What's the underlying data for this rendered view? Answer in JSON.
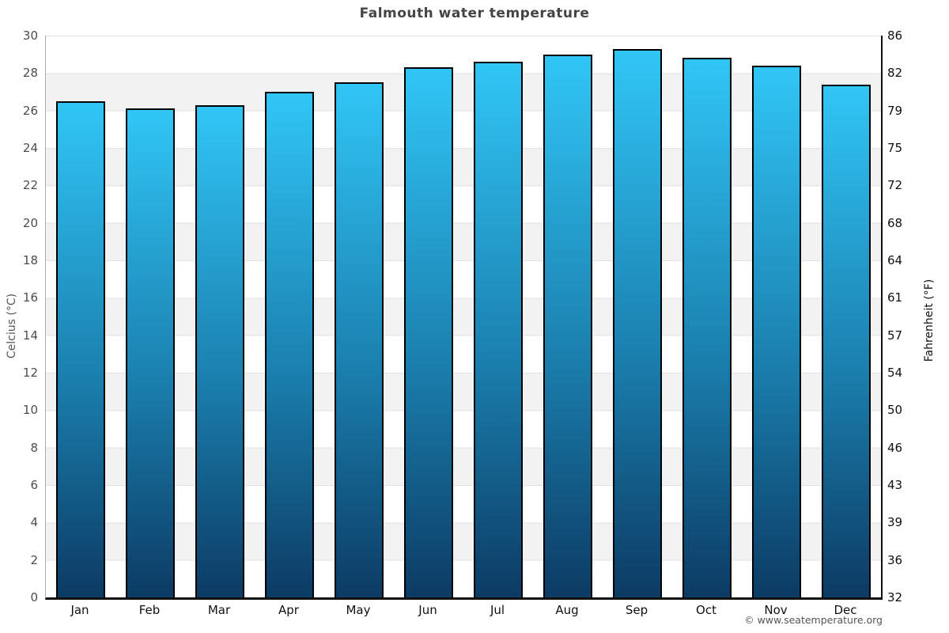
{
  "footer": {
    "credit": "© www.seatemperature.org"
  },
  "chart_data": {
    "type": "bar",
    "title": "Falmouth water temperature",
    "categories": [
      "Jan",
      "Feb",
      "Mar",
      "Apr",
      "May",
      "Jun",
      "Jul",
      "Aug",
      "Sep",
      "Oct",
      "Nov",
      "Dec"
    ],
    "series": [
      {
        "name": "Water temperature",
        "unit": "°C",
        "values": [
          26.5,
          26.1,
          26.3,
          27.0,
          27.5,
          28.3,
          28.6,
          29.0,
          29.3,
          28.8,
          28.4,
          27.4
        ]
      }
    ],
    "ylabel_left": "Celcius (°C)",
    "ylabel_right": "Fahrenheit (°F)",
    "ylim": [
      0,
      30
    ],
    "yticks_celsius": [
      30,
      28,
      26,
      24,
      22,
      20,
      18,
      16,
      14,
      12,
      10,
      8,
      6,
      4,
      2,
      0
    ],
    "yticks_fahrenheit": [
      86,
      82,
      79,
      75,
      72,
      68,
      64,
      61,
      57,
      54,
      50,
      46,
      43,
      39,
      36,
      32
    ],
    "legend": "none",
    "grid": "alternating horizontal bands every 2°C",
    "colors": {
      "bar_gradient_top": "#31c6f6",
      "bar_gradient_bottom": "#0c3b64",
      "bar_border": "#000000",
      "band_gray": "#f2f2f2",
      "band_white": "#ffffff",
      "title_text": "#444444",
      "axis_bottom": "#111111"
    }
  }
}
